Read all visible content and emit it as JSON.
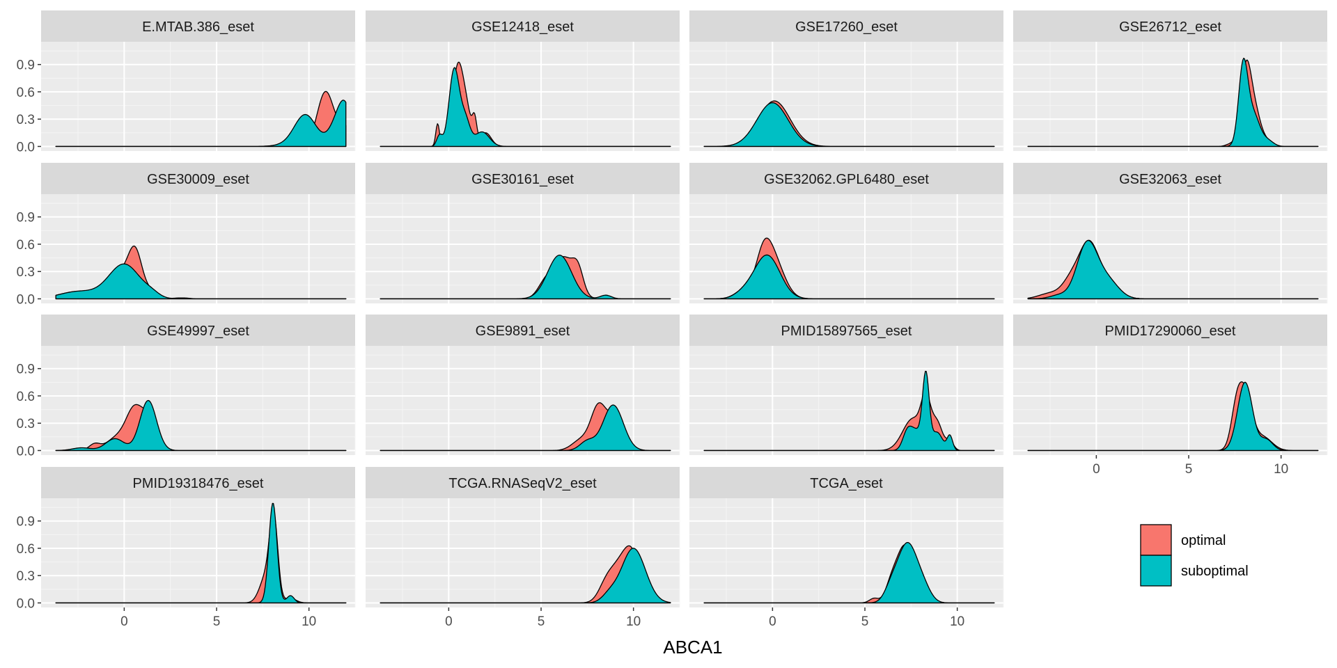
{
  "chart_data": {
    "type": "density",
    "title": "",
    "xlabel": "ABCA1",
    "ylabel": "",
    "xlim": [
      -4.5,
      12.5
    ],
    "ylim": [
      -0.05,
      1.15
    ],
    "x_ticks": [
      0,
      5,
      10
    ],
    "x_tick_labels": [
      "0",
      "5",
      "10"
    ],
    "y_ticks": [
      0.0,
      0.3,
      0.6,
      0.9
    ],
    "y_tick_labels": [
      "0.0",
      "0.3",
      "0.6",
      "0.9"
    ],
    "x_support": [
      -3.7,
      12.0
    ],
    "grid": true,
    "legend": {
      "placement": "bottom-right",
      "entries": [
        {
          "name": "optimal",
          "color": "#F8766D"
        },
        {
          "name": "suboptimal",
          "color": "#00BFC4"
        }
      ]
    },
    "colors": {
      "panel_bg": "#EBEBEB",
      "strip_bg": "#D9D9D9",
      "grid_major": "#FFFFFF",
      "outline": "#000000"
    },
    "panels": [
      {
        "name": "E.MTAB.386_eset",
        "optimal": [
          [
            8.5,
            0.01,
            0.55
          ],
          [
            10.9,
            0.6,
            0.45
          ],
          [
            12.0,
            0.2,
            0.4
          ]
        ],
        "suboptimal": [
          [
            8.5,
            0.01,
            0.55
          ],
          [
            9.8,
            0.35,
            0.6
          ],
          [
            11.7,
            0.34,
            0.5
          ],
          [
            12.0,
            0.2,
            0.35
          ]
        ]
      },
      {
        "name": "GSE12418_eset",
        "optimal": [
          [
            -0.6,
            0.25,
            0.1
          ],
          [
            0.5,
            0.88,
            0.3
          ],
          [
            1.0,
            0.3,
            0.25
          ],
          [
            1.4,
            0.25,
            0.12
          ],
          [
            2.0,
            0.15,
            0.3
          ]
        ],
        "suboptimal": [
          [
            -0.5,
            0.12,
            0.15
          ],
          [
            0.3,
            0.85,
            0.28
          ],
          [
            0.9,
            0.28,
            0.25
          ],
          [
            1.8,
            0.16,
            0.4
          ]
        ]
      },
      {
        "name": "GSE17260_eset",
        "optimal": [
          [
            0.1,
            0.5,
            0.85
          ]
        ],
        "suboptimal": [
          [
            0.0,
            0.48,
            0.85
          ]
        ]
      },
      {
        "name": "GSE26712_eset",
        "optimal": [
          [
            8.1,
            0.85,
            0.28
          ],
          [
            8.6,
            0.35,
            0.3
          ],
          [
            9.2,
            0.06,
            0.3
          ],
          [
            7.3,
            0.03,
            0.25
          ]
        ],
        "suboptimal": [
          [
            7.95,
            0.86,
            0.25
          ],
          [
            8.5,
            0.35,
            0.35
          ],
          [
            9.3,
            0.06,
            0.3
          ]
        ]
      },
      {
        "name": "GSE30009_eset",
        "optimal": [
          [
            -2.5,
            0.08,
            1.0
          ],
          [
            0.0,
            0.3,
            0.75
          ],
          [
            0.6,
            0.35,
            0.35
          ],
          [
            1.5,
            0.05,
            0.4
          ],
          [
            3.0,
            0.01,
            0.3
          ]
        ],
        "suboptimal": [
          [
            -2.5,
            0.08,
            1.0
          ],
          [
            0.0,
            0.38,
            0.85
          ],
          [
            1.5,
            0.04,
            0.4
          ],
          [
            3.2,
            0.01,
            0.3
          ]
        ]
      },
      {
        "name": "GSE30161_eset",
        "optimal": [
          [
            5.2,
            0.15,
            0.4
          ],
          [
            6.2,
            0.45,
            0.55
          ],
          [
            7.0,
            0.25,
            0.3
          ],
          [
            8.5,
            0.03,
            0.3
          ]
        ],
        "suboptimal": [
          [
            6.0,
            0.48,
            0.65
          ],
          [
            8.5,
            0.04,
            0.3
          ]
        ]
      },
      {
        "name": "GSE32062.GPL6480_eset",
        "optimal": [
          [
            -1.5,
            0.1,
            0.5
          ],
          [
            -0.5,
            0.3,
            0.4
          ],
          [
            0.0,
            0.45,
            0.6
          ]
        ],
        "suboptimal": [
          [
            -1.6,
            0.05,
            0.5
          ],
          [
            -0.3,
            0.48,
            0.7
          ]
        ]
      },
      {
        "name": "GSE32063_eset",
        "optimal": [
          [
            -2.5,
            0.06,
            0.6
          ],
          [
            -1.3,
            0.22,
            0.5
          ],
          [
            -0.4,
            0.55,
            0.5
          ],
          [
            0.6,
            0.2,
            0.6
          ]
        ],
        "suboptimal": [
          [
            -2.0,
            0.04,
            0.5
          ],
          [
            -0.5,
            0.6,
            0.55
          ],
          [
            0.6,
            0.2,
            0.6
          ]
        ]
      },
      {
        "name": "GSE49997_eset",
        "optimal": [
          [
            -1.6,
            0.07,
            0.3
          ],
          [
            -0.5,
            0.12,
            0.5
          ],
          [
            0.6,
            0.48,
            0.5
          ],
          [
            1.3,
            0.2,
            0.3
          ]
        ],
        "suboptimal": [
          [
            -2.3,
            0.03,
            0.5
          ],
          [
            -0.5,
            0.13,
            0.5
          ],
          [
            1.3,
            0.55,
            0.45
          ]
        ]
      },
      {
        "name": "GSE9891_eset",
        "optimal": [
          [
            7.2,
            0.12,
            0.5
          ],
          [
            8.1,
            0.45,
            0.4
          ],
          [
            9.0,
            0.35,
            0.45
          ]
        ],
        "suboptimal": [
          [
            7.5,
            0.1,
            0.4
          ],
          [
            8.9,
            0.5,
            0.55
          ]
        ]
      },
      {
        "name": "PMID15897565_eset",
        "optimal": [
          [
            7.6,
            0.35,
            0.55
          ],
          [
            8.3,
            0.45,
            0.25
          ],
          [
            8.9,
            0.3,
            0.3
          ],
          [
            9.6,
            0.1,
            0.2
          ]
        ],
        "suboptimal": [
          [
            7.3,
            0.2,
            0.25
          ],
          [
            8.3,
            0.8,
            0.18
          ],
          [
            7.8,
            0.2,
            0.3
          ],
          [
            8.9,
            0.2,
            0.3
          ],
          [
            9.6,
            0.16,
            0.15
          ]
        ]
      },
      {
        "name": "PMID17290060_eset",
        "optimal": [
          [
            7.6,
            0.45,
            0.3
          ],
          [
            8.1,
            0.55,
            0.35
          ],
          [
            9.0,
            0.15,
            0.5
          ]
        ],
        "suboptimal": [
          [
            8.05,
            0.75,
            0.4
          ],
          [
            9.2,
            0.12,
            0.35
          ]
        ]
      },
      {
        "name": "PMID19318476_eset",
        "optimal": [
          [
            7.7,
            0.3,
            0.35
          ],
          [
            8.1,
            0.85,
            0.22
          ],
          [
            9.0,
            0.05,
            0.3
          ]
        ],
        "suboptimal": [
          [
            8.05,
            1.1,
            0.22
          ],
          [
            9.0,
            0.08,
            0.2
          ]
        ]
      },
      {
        "name": "TCGA.RNASeqV2_eset",
        "optimal": [
          [
            8.5,
            0.15,
            0.4
          ],
          [
            9.4,
            0.45,
            0.6
          ],
          [
            10.0,
            0.3,
            0.4
          ]
        ],
        "suboptimal": [
          [
            8.7,
            0.08,
            0.4
          ],
          [
            10.0,
            0.6,
            0.65
          ]
        ]
      },
      {
        "name": "TCGA_eset",
        "optimal": [
          [
            5.5,
            0.05,
            0.25
          ],
          [
            6.4,
            0.15,
            0.3
          ],
          [
            7.1,
            0.55,
            0.45
          ],
          [
            7.8,
            0.2,
            0.5
          ]
        ],
        "suboptimal": [
          [
            6.4,
            0.12,
            0.35
          ],
          [
            7.3,
            0.65,
            0.55
          ],
          [
            8.2,
            0.12,
            0.4
          ]
        ]
      }
    ]
  }
}
